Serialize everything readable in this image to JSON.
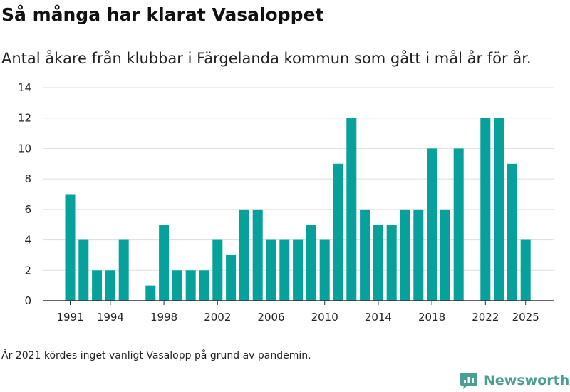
{
  "chart_data": {
    "type": "bar",
    "title": "Så många har klarat Vasaloppet",
    "subtitle": "Antal åkare från klubbar i Färgelanda kommun som gått i mål år för år.",
    "xlabel": "",
    "ylabel": "",
    "x": [
      1991,
      1992,
      1993,
      1994,
      1995,
      1996,
      1997,
      1998,
      1999,
      2000,
      2001,
      2002,
      2003,
      2004,
      2005,
      2006,
      2007,
      2008,
      2009,
      2010,
      2011,
      2012,
      2013,
      2014,
      2015,
      2016,
      2017,
      2018,
      2019,
      2020,
      2021,
      2022,
      2023,
      2024,
      2025
    ],
    "values": [
      7,
      4,
      2,
      2,
      4,
      0,
      1,
      5,
      2,
      2,
      2,
      4,
      3,
      6,
      6,
      4,
      4,
      4,
      5,
      4,
      9,
      12,
      6,
      5,
      5,
      6,
      6,
      10,
      6,
      10,
      0,
      12,
      12,
      9,
      4
    ],
    "xticks": [
      "1991",
      "1994",
      "1998",
      "2002",
      "2006",
      "2010",
      "2014",
      "2018",
      "2022",
      "2025"
    ],
    "yticks": [
      "0",
      "2",
      "4",
      "6",
      "8",
      "10",
      "12",
      "14"
    ],
    "ylim": [
      0,
      14
    ],
    "grid": true,
    "bar_color": "#06a19a",
    "grid_color": "#dddddd",
    "axis_color": "#333333"
  },
  "footnote": "År 2021 kördes inget vanligt Vasalopp på grund av pandemin.",
  "brand": {
    "name": "Newsworthy",
    "icon": "newsworthy-logo-icon",
    "color": "#4a9e94"
  }
}
